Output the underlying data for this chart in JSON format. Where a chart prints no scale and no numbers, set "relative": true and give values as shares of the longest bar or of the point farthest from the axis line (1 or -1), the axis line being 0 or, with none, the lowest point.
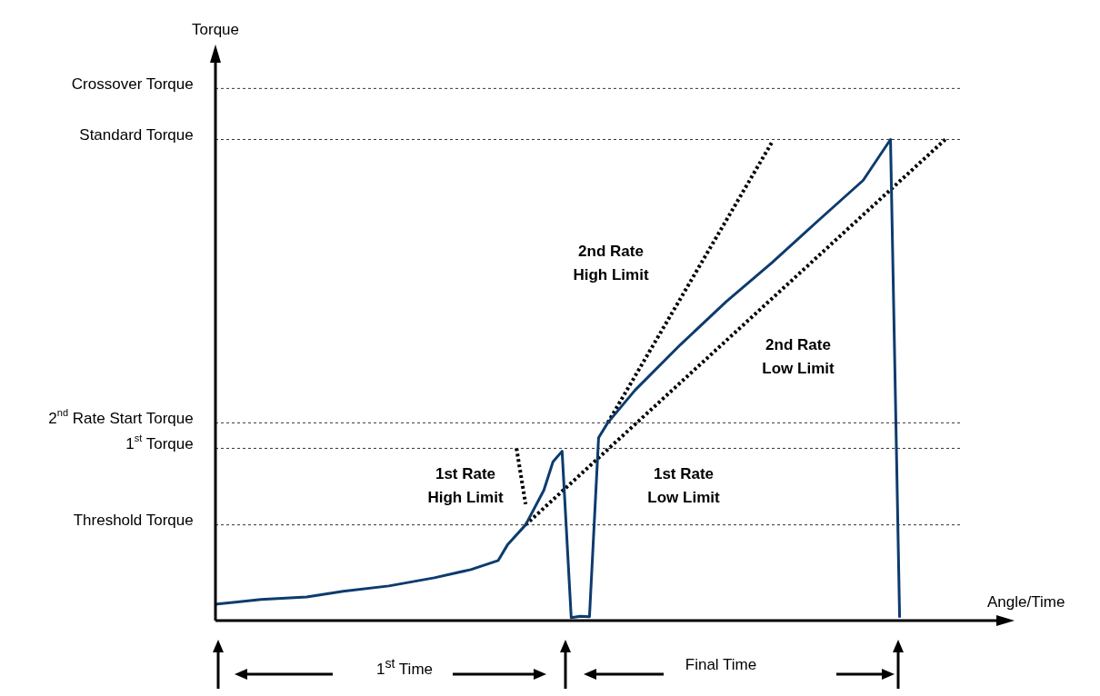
{
  "chart_data": {
    "type": "line",
    "relative": true,
    "xlabel": "Angle/Time",
    "legend": false,
    "marker": "none",
    "categories": [
      null,
      null,
      null,
      null,
      null,
      null,
      null,
      null,
      null,
      null,
      null,
      null,
      null,
      null,
      null,
      null,
      null,
      null,
      null,
      null,
      null,
      null,
      null,
      null,
      null,
      null,
      null,
      null,
      null,
      null,
      null,
      null,
      null,
      null,
      null,
      null,
      null,
      null,
      null,
      null,
      null,
      null,
      null,
      null,
      null,
      null,
      null,
      null,
      null,
      null,
      null,
      null,
      null,
      null,
      null,
      null,
      null,
      null,
      null,
      null,
      null,
      null,
      null,
      null,
      null,
      null,
      null,
      null,
      null,
      null,
      null,
      null,
      null,
      null,
      null,
      null,
      null,
      null,
      null,
      null,
      null,
      null,
      null,
      null,
      null,
      null,
      null,
      null
    ],
    "series": [
      {
        "color": "#0d3b6e",
        "line_style": "solid",
        "values": [
          0.034,
          null,
          null,
          null,
          null,
          0.044,
          null,
          null,
          null,
          null,
          0.049,
          null,
          null,
          null,
          0.061,
          null,
          null,
          null,
          null,
          0.072,
          null,
          null,
          null,
          null,
          0.089,
          null,
          null,
          null,
          0.106,
          null,
          null,
          0.125,
          0.157,
          null,
          0.199,
          null,
          0.271,
          0.33,
          0.352,
          0.006,
          0.009,
          0.008,
          0.38,
          0.411,
          null,
          null,
          0.479,
          null,
          null,
          null,
          null,
          0.574,
          null,
          null,
          null,
          null,
          0.663,
          null,
          null,
          null,
          null,
          0.744,
          null,
          null,
          null,
          null,
          0.83,
          null,
          null,
          null,
          null,
          0.915,
          null,
          null,
          1.0,
          0.006,
          null,
          null,
          null,
          null,
          null,
          null,
          null,
          null,
          null,
          null,
          null,
          null
        ]
      },
      {
        "color": "#000000",
        "line_style": "dotted",
        "values": [
          null,
          null,
          null,
          null,
          null,
          null,
          null,
          null,
          null,
          null,
          null,
          null,
          null,
          null,
          null,
          null,
          null,
          null,
          null,
          null,
          null,
          null,
          null,
          null,
          null,
          null,
          null,
          null,
          null,
          null,
          null,
          null,
          null,
          null,
          null,
          null,
          null,
          null,
          null,
          null,
          null,
          null,
          null,
          0.411,
          null,
          null,
          null,
          null,
          null,
          null,
          null,
          null,
          null,
          null,
          null,
          null,
          null,
          null,
          null,
          null,
          null,
          0.994,
          null,
          null,
          null,
          null,
          null,
          null,
          null,
          null,
          null,
          null,
          null,
          null,
          null,
          null,
          null,
          null,
          null,
          null,
          null,
          null,
          null,
          null,
          null,
          null,
          null,
          null
        ]
      },
      {
        "color": "#000000",
        "line_style": "dotted",
        "values": [
          null,
          null,
          null,
          null,
          null,
          null,
          null,
          null,
          null,
          null,
          null,
          null,
          null,
          null,
          null,
          null,
          null,
          null,
          null,
          null,
          null,
          null,
          null,
          null,
          null,
          null,
          null,
          null,
          null,
          null,
          null,
          null,
          null,
          null,
          0.199,
          null,
          null,
          null,
          null,
          null,
          null,
          null,
          null,
          null,
          null,
          null,
          null,
          null,
          null,
          null,
          null,
          null,
          null,
          null,
          null,
          null,
          null,
          null,
          null,
          null,
          null,
          null,
          null,
          null,
          null,
          null,
          null,
          null,
          null,
          null,
          null,
          null,
          null,
          null,
          null,
          null,
          null,
          null,
          null,
          null,
          1.0,
          null,
          null,
          null,
          null,
          null,
          null,
          null
        ]
      },
      {
        "color": "#000000",
        "line_style": "dotted",
        "values": [
          null,
          null,
          null,
          null,
          null,
          null,
          null,
          null,
          null,
          null,
          null,
          null,
          null,
          null,
          null,
          null,
          null,
          null,
          null,
          null,
          null,
          null,
          null,
          null,
          null,
          null,
          null,
          null,
          null,
          null,
          null,
          null,
          null,
          0.358,
          0.242,
          null,
          null,
          null,
          null,
          null,
          null,
          null,
          null,
          null,
          null,
          null,
          null,
          null,
          null,
          null,
          null,
          null,
          null,
          null,
          null,
          null,
          null,
          null,
          null,
          null,
          null,
          null,
          null,
          null,
          null,
          null,
          null,
          null,
          null,
          null,
          null,
          null,
          null,
          null,
          null,
          null,
          null,
          null,
          null,
          null,
          null,
          null,
          null,
          null,
          null,
          null,
          null,
          null
        ]
      }
    ],
    "ref_lines": [
      {
        "axis": "y",
        "value": 1.106,
        "label": "Crossover Torque",
        "color": "#333333",
        "line_style": "dotted"
      },
      {
        "axis": "y",
        "value": 1.0,
        "label": "Standard Torque",
        "color": "#333333",
        "line_style": "dotted"
      },
      {
        "axis": "y",
        "value": 0.411,
        "label": "2$^{nd}$ Rate Start Torque",
        "color": "#333333",
        "line_style": "dotted"
      },
      {
        "axis": "y",
        "value": 0.358,
        "label": "1$^{st}$ Torque",
        "color": "#333333",
        "line_style": "dotted"
      },
      {
        "axis": "y",
        "value": 0.199,
        "label": "Threshold Torque",
        "color": "#333333",
        "line_style": "dotted"
      }
    ],
    "annotations": [
      "2nd Rate\nHigh Limit",
      "2nd Rate\nLow Limit",
      "1st Rate\nHigh Limit",
      "1st Rate\nLow Limit",
      "1$^{st}$ Time",
      "Final Time",
      "Torque"
    ]
  }
}
